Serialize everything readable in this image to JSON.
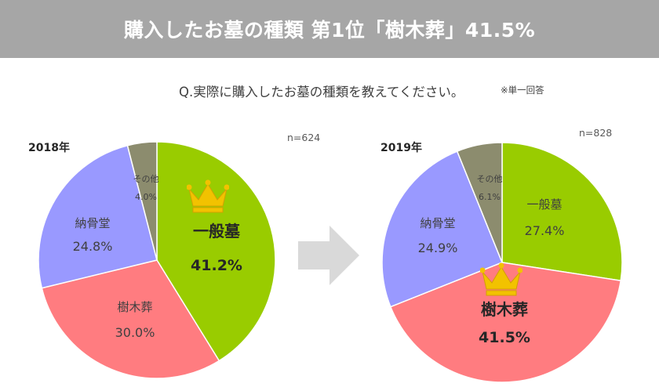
{
  "banner": {
    "title": "購入したお墓の種類 第1位「樹木葬」41.5%"
  },
  "question": {
    "text": "Q.実際に購入したお墓の種類を教えてください。",
    "note": "※単一回答"
  },
  "colors": {
    "ippan": "#99cc00",
    "jumoku": "#ff7c80",
    "noukotsu": "#9999ff",
    "sonota": "#8c8c6e",
    "banner": "#a6a6a6",
    "arrow": "#d9d9d9",
    "crown": "#f2c200"
  },
  "chart_data": [
    {
      "type": "pie",
      "title": "2018年",
      "n_label": "n=624",
      "unit": "%",
      "slices": [
        {
          "label": "一般墓",
          "value": 41.2,
          "display": "41.2%",
          "emphasis": true
        },
        {
          "label": "樹木葬",
          "value": 30.0,
          "display": "30.0%",
          "emphasis": false
        },
        {
          "label": "納骨堂",
          "value": 24.8,
          "display": "24.8%",
          "emphasis": false
        },
        {
          "label": "その他",
          "value": 4.0,
          "display": "4.0%",
          "emphasis": false
        }
      ]
    },
    {
      "type": "pie",
      "title": "2019年",
      "n_label": "n=828",
      "unit": "%",
      "slices": [
        {
          "label": "一般墓",
          "value": 27.4,
          "display": "27.4%",
          "emphasis": false
        },
        {
          "label": "樹木葬",
          "value": 41.5,
          "display": "41.5%",
          "emphasis": true
        },
        {
          "label": "納骨堂",
          "value": 24.9,
          "display": "24.9%",
          "emphasis": false
        },
        {
          "label": "その他",
          "value": 6.1,
          "display": "6.1%",
          "emphasis": false
        }
      ]
    }
  ]
}
